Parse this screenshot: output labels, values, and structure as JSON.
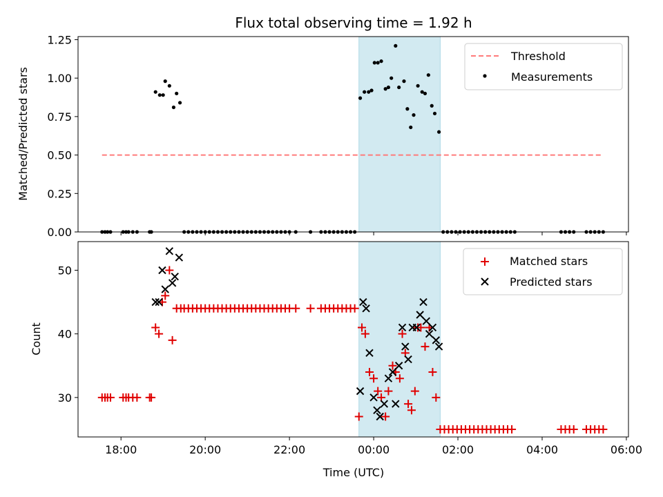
{
  "chart_data": {
    "title": "Flux total observing time = 1.92 h",
    "colors": {
      "threshold": "#ff7a7a",
      "measurement": "#000000",
      "matched": "#e00000",
      "predicted": "#000000",
      "shade": "#add8e6"
    },
    "x_ticks": [
      {
        "v": 18,
        "label": "18:00"
      },
      {
        "v": 20,
        "label": "20:00"
      },
      {
        "v": 22,
        "label": "22:00"
      },
      {
        "v": 24,
        "label": "00:00"
      },
      {
        "v": 26,
        "label": "02:00"
      },
      {
        "v": 28,
        "label": "04:00"
      },
      {
        "v": 30,
        "label": "06:00"
      }
    ],
    "xlabel": "Time (UTC)",
    "xlim": [
      16.98,
      30.05
    ],
    "shaded_span": [
      23.65,
      25.58
    ],
    "top": {
      "type": "scatter",
      "ylabel": "Matched/Predicted stars",
      "ylim": [
        0,
        1.27
      ],
      "y_ticks": [
        "0.00",
        "0.25",
        "0.50",
        "0.75",
        "1.00",
        "1.25"
      ],
      "threshold": {
        "name": "Threshold",
        "y": 0.5,
        "x_range": [
          17.55,
          29.45
        ]
      },
      "legend": {
        "threshold": "Threshold",
        "measurements": "Measurements"
      },
      "measurements": [
        [
          17.55,
          0
        ],
        [
          17.62,
          0
        ],
        [
          17.68,
          0
        ],
        [
          17.75,
          0
        ],
        [
          18.05,
          0
        ],
        [
          18.12,
          0
        ],
        [
          18.18,
          0
        ],
        [
          18.28,
          0
        ],
        [
          18.38,
          0
        ],
        [
          18.68,
          0
        ],
        [
          18.72,
          0
        ],
        [
          18.82,
          0.91
        ],
        [
          18.92,
          0.89
        ],
        [
          19.0,
          0.89
        ],
        [
          19.05,
          0.98
        ],
        [
          19.15,
          0.95
        ],
        [
          19.25,
          0.81
        ],
        [
          19.32,
          0.9
        ],
        [
          19.4,
          0.84
        ],
        [
          19.5,
          0
        ],
        [
          19.6,
          0
        ],
        [
          19.7,
          0
        ],
        [
          19.8,
          0
        ],
        [
          19.9,
          0
        ],
        [
          20.0,
          0
        ],
        [
          20.1,
          0
        ],
        [
          20.2,
          0
        ],
        [
          20.3,
          0
        ],
        [
          20.4,
          0
        ],
        [
          20.5,
          0
        ],
        [
          20.6,
          0
        ],
        [
          20.7,
          0
        ],
        [
          20.8,
          0
        ],
        [
          20.9,
          0
        ],
        [
          21.0,
          0
        ],
        [
          21.1,
          0
        ],
        [
          21.2,
          0
        ],
        [
          21.3,
          0
        ],
        [
          21.4,
          0
        ],
        [
          21.5,
          0
        ],
        [
          21.6,
          0
        ],
        [
          21.7,
          0
        ],
        [
          21.8,
          0
        ],
        [
          21.9,
          0
        ],
        [
          22.0,
          0
        ],
        [
          22.15,
          0
        ],
        [
          22.5,
          0
        ],
        [
          22.75,
          0
        ],
        [
          22.85,
          0
        ],
        [
          22.95,
          0
        ],
        [
          23.05,
          0
        ],
        [
          23.15,
          0
        ],
        [
          23.25,
          0
        ],
        [
          23.35,
          0
        ],
        [
          23.45,
          0
        ],
        [
          23.55,
          0
        ],
        [
          23.68,
          0.87
        ],
        [
          23.78,
          0.91
        ],
        [
          23.88,
          0.91
        ],
        [
          23.95,
          0.92
        ],
        [
          24.02,
          1.1
        ],
        [
          24.1,
          1.1
        ],
        [
          24.18,
          1.11
        ],
        [
          24.28,
          0.93
        ],
        [
          24.35,
          0.94
        ],
        [
          24.42,
          1.0
        ],
        [
          24.52,
          1.21
        ],
        [
          24.6,
          0.94
        ],
        [
          24.72,
          0.98
        ],
        [
          24.8,
          0.8
        ],
        [
          24.88,
          0.68
        ],
        [
          24.95,
          0.76
        ],
        [
          25.05,
          0.95
        ],
        [
          25.15,
          0.91
        ],
        [
          25.22,
          0.9
        ],
        [
          25.3,
          1.02
        ],
        [
          25.38,
          0.82
        ],
        [
          25.45,
          0.77
        ],
        [
          25.55,
          0.65
        ],
        [
          25.65,
          0
        ],
        [
          25.75,
          0
        ],
        [
          25.85,
          0
        ],
        [
          25.95,
          0
        ],
        [
          26.05,
          0
        ],
        [
          26.15,
          0
        ],
        [
          26.25,
          0
        ],
        [
          26.35,
          0
        ],
        [
          26.45,
          0
        ],
        [
          26.55,
          0
        ],
        [
          26.65,
          0
        ],
        [
          26.75,
          0
        ],
        [
          26.85,
          0
        ],
        [
          26.95,
          0
        ],
        [
          27.05,
          0
        ],
        [
          27.15,
          0
        ],
        [
          27.25,
          0
        ],
        [
          27.35,
          0
        ],
        [
          28.45,
          0
        ],
        [
          28.55,
          0
        ],
        [
          28.65,
          0
        ],
        [
          28.75,
          0
        ],
        [
          29.05,
          0
        ],
        [
          29.15,
          0
        ],
        [
          29.25,
          0
        ],
        [
          29.35,
          0
        ],
        [
          29.45,
          0
        ]
      ]
    },
    "bottom": {
      "type": "scatter",
      "ylabel": "Count",
      "ylim": [
        23.8,
        54.5
      ],
      "y_ticks": [
        30,
        40,
        50
      ],
      "legend": {
        "matched": "Matched stars",
        "predicted": "Predicted stars"
      },
      "matched": [
        [
          17.55,
          30
        ],
        [
          17.62,
          30
        ],
        [
          17.68,
          30
        ],
        [
          17.75,
          30
        ],
        [
          18.05,
          30
        ],
        [
          18.12,
          30
        ],
        [
          18.18,
          30
        ],
        [
          18.28,
          30
        ],
        [
          18.38,
          30
        ],
        [
          18.68,
          30
        ],
        [
          18.72,
          30
        ],
        [
          18.82,
          41
        ],
        [
          18.9,
          40
        ],
        [
          18.98,
          45
        ],
        [
          19.05,
          46
        ],
        [
          19.15,
          50
        ],
        [
          19.22,
          39
        ],
        [
          19.32,
          44
        ],
        [
          19.42,
          44
        ],
        [
          19.5,
          44
        ],
        [
          19.6,
          44
        ],
        [
          19.7,
          44
        ],
        [
          19.8,
          44
        ],
        [
          19.9,
          44
        ],
        [
          20.0,
          44
        ],
        [
          20.1,
          44
        ],
        [
          20.2,
          44
        ],
        [
          20.3,
          44
        ],
        [
          20.4,
          44
        ],
        [
          20.5,
          44
        ],
        [
          20.6,
          44
        ],
        [
          20.7,
          44
        ],
        [
          20.8,
          44
        ],
        [
          20.9,
          44
        ],
        [
          21.0,
          44
        ],
        [
          21.1,
          44
        ],
        [
          21.2,
          44
        ],
        [
          21.3,
          44
        ],
        [
          21.4,
          44
        ],
        [
          21.5,
          44
        ],
        [
          21.6,
          44
        ],
        [
          21.7,
          44
        ],
        [
          21.8,
          44
        ],
        [
          21.9,
          44
        ],
        [
          22.0,
          44
        ],
        [
          22.15,
          44
        ],
        [
          22.5,
          44
        ],
        [
          22.75,
          44
        ],
        [
          22.85,
          44
        ],
        [
          22.95,
          44
        ],
        [
          23.05,
          44
        ],
        [
          23.15,
          44
        ],
        [
          23.25,
          44
        ],
        [
          23.35,
          44
        ],
        [
          23.45,
          44
        ],
        [
          23.55,
          44
        ],
        [
          23.65,
          27
        ],
        [
          23.72,
          41
        ],
        [
          23.8,
          40
        ],
        [
          23.9,
          34
        ],
        [
          24.0,
          33
        ],
        [
          24.1,
          31
        ],
        [
          24.18,
          30
        ],
        [
          24.28,
          27
        ],
        [
          24.35,
          31
        ],
        [
          24.45,
          35
        ],
        [
          24.52,
          34
        ],
        [
          24.62,
          33
        ],
        [
          24.68,
          40
        ],
        [
          24.75,
          37
        ],
        [
          24.82,
          29
        ],
        [
          24.9,
          28
        ],
        [
          24.98,
          31
        ],
        [
          25.05,
          41
        ],
        [
          25.12,
          41
        ],
        [
          25.22,
          38
        ],
        [
          25.32,
          41
        ],
        [
          25.4,
          34
        ],
        [
          25.48,
          30
        ],
        [
          25.58,
          25
        ],
        [
          25.68,
          25
        ],
        [
          25.78,
          25
        ],
        [
          25.88,
          25
        ],
        [
          25.98,
          25
        ],
        [
          26.08,
          25
        ],
        [
          26.18,
          25
        ],
        [
          26.28,
          25
        ],
        [
          26.38,
          25
        ],
        [
          26.48,
          25
        ],
        [
          26.58,
          25
        ],
        [
          26.68,
          25
        ],
        [
          26.78,
          25
        ],
        [
          26.88,
          25
        ],
        [
          26.98,
          25
        ],
        [
          27.08,
          25
        ],
        [
          27.18,
          25
        ],
        [
          27.28,
          25
        ],
        [
          28.45,
          25
        ],
        [
          28.55,
          25
        ],
        [
          28.65,
          25
        ],
        [
          28.75,
          25
        ],
        [
          29.05,
          25
        ],
        [
          29.15,
          25
        ],
        [
          29.25,
          25
        ],
        [
          29.35,
          25
        ],
        [
          29.45,
          25
        ]
      ],
      "predicted": [
        [
          18.82,
          45
        ],
        [
          18.9,
          45
        ],
        [
          18.98,
          50
        ],
        [
          19.05,
          47
        ],
        [
          19.15,
          53
        ],
        [
          19.22,
          48
        ],
        [
          19.28,
          49
        ],
        [
          19.38,
          52
        ],
        [
          23.68,
          31
        ],
        [
          23.75,
          45
        ],
        [
          23.82,
          44
        ],
        [
          23.9,
          37
        ],
        [
          24.0,
          30
        ],
        [
          24.08,
          28
        ],
        [
          24.15,
          27
        ],
        [
          24.25,
          29
        ],
        [
          24.35,
          33
        ],
        [
          24.45,
          34
        ],
        [
          24.52,
          29
        ],
        [
          24.6,
          35
        ],
        [
          24.68,
          41
        ],
        [
          24.75,
          38
        ],
        [
          24.82,
          36
        ],
        [
          24.92,
          41
        ],
        [
          25.02,
          41
        ],
        [
          25.1,
          43
        ],
        [
          25.18,
          45
        ],
        [
          25.25,
          42
        ],
        [
          25.32,
          40
        ],
        [
          25.4,
          41
        ],
        [
          25.48,
          39
        ],
        [
          25.55,
          38
        ]
      ]
    }
  }
}
